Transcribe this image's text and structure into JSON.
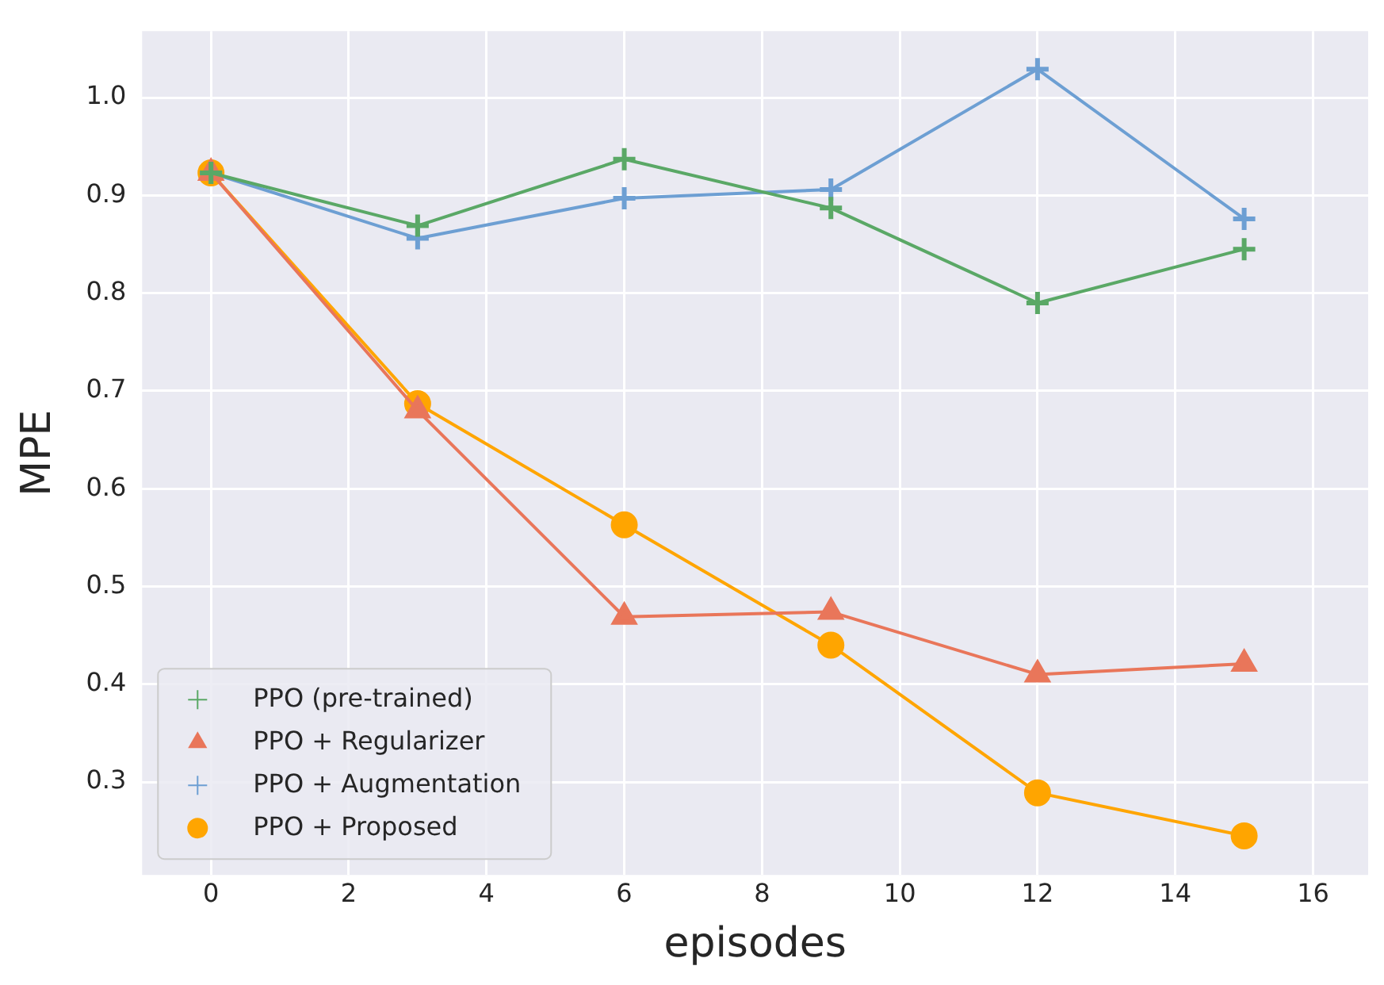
{
  "chart_data": {
    "type": "line",
    "xlabel": "episodes",
    "ylabel": "MPE",
    "x": [
      0,
      3,
      6,
      9,
      12,
      15
    ],
    "xlim": [
      -1,
      16.8
    ],
    "xticks": [
      0,
      2,
      4,
      6,
      8,
      10,
      12,
      14,
      16
    ],
    "ylim": [
      0.205,
      1.068
    ],
    "yticks": [
      0.3,
      0.4,
      0.5,
      0.6,
      0.7,
      0.8,
      0.9,
      {
        "value": 1,
        "label": "1.0"
      }
    ],
    "grid": true,
    "legend": "bottom left",
    "series": [
      {
        "name": "PPO (pre-trained)",
        "color": "#5aa866",
        "marker": "cross",
        "values": [
          0.923,
          0.869,
          0.937,
          0.887,
          0.79,
          0.845
        ]
      },
      {
        "name": "PPO + Regularizer",
        "color": "#e9765a",
        "marker": "triangle",
        "values": [
          0.923,
          0.68,
          0.469,
          0.474,
          0.41,
          0.421
        ]
      },
      {
        "name": "PPO + Augmentation",
        "color": "#6d9fd3",
        "marker": "cross",
        "values": [
          0.923,
          0.856,
          0.897,
          0.906,
          1.029,
          0.876
        ]
      },
      {
        "name": "PPO + Proposed",
        "color": "#ffa500",
        "marker": "circle",
        "values": [
          0.923,
          0.687,
          0.563,
          0.44,
          0.289,
          0.245
        ]
      }
    ]
  }
}
